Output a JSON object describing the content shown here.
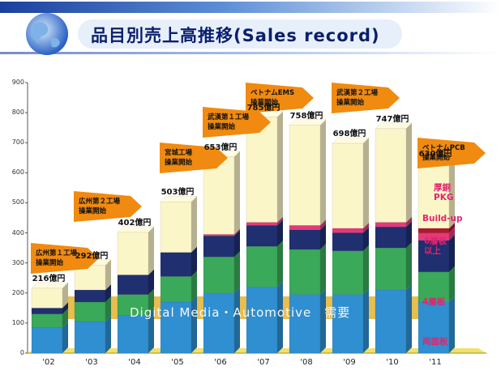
{
  "header": {
    "title": "品目別売上高推移(Sales record)"
  },
  "chart_data": {
    "type": "bar",
    "stacked": true,
    "categories": [
      "'02",
      "'03",
      "'04",
      "'05",
      "'06",
      "'07",
      "'08",
      "'09",
      "'10",
      "'11"
    ],
    "value_labels": [
      "216億円",
      "292億円",
      "402億円",
      "503億円",
      "653億円",
      "785億円",
      "758億円",
      "698億円",
      "747億円",
      "630億円"
    ],
    "totals": [
      216,
      292,
      402,
      503,
      653,
      785,
      758,
      698,
      747,
      630
    ],
    "ylim": [
      0,
      900
    ],
    "yticks": [
      0,
      100,
      200,
      300,
      400,
      500,
      600,
      700,
      800,
      900
    ],
    "series": [
      {
        "name": "両面板",
        "color": "#2f8fd0",
        "values": [
          85,
          105,
          125,
          170,
          200,
          220,
          195,
          195,
          210,
          170
        ]
      },
      {
        "name": "4層板",
        "color": "#3aa95a",
        "values": [
          45,
          65,
          70,
          85,
          120,
          135,
          150,
          145,
          140,
          100
        ]
      },
      {
        "name": "6層板以上",
        "color": "#1f2f70",
        "values": [
          20,
          40,
          65,
          80,
          70,
          70,
          65,
          60,
          70,
          105
        ]
      },
      {
        "name": "Build-up",
        "color": "#e23a7a",
        "values": [
          0,
          0,
          0,
          0,
          5,
          10,
          15,
          15,
          15,
          25
        ]
      },
      {
        "name": "厚銅PKG",
        "color": "#b1182c",
        "values": [
          0,
          0,
          0,
          0,
          0,
          0,
          0,
          0,
          0,
          15
        ]
      },
      {
        "name": "",
        "color": "#fbf6c8",
        "values": [
          66,
          82,
          142,
          168,
          258,
          350,
          333,
          283,
          312,
          215
        ]
      }
    ],
    "legend_labels": [
      "厚銅",
      "PKG",
      "Build-up",
      "6層板",
      "以上",
      "4層板",
      "両面板"
    ],
    "trend_arrow": "Digital Media・Automotive　需要",
    "callouts": [
      {
        "category": "'02",
        "lines": [
          "広州第１工場",
          "操業開始"
        ]
      },
      {
        "category": "'03",
        "lines": [
          "広州第２工場",
          "操業開始"
        ]
      },
      {
        "category": "'05",
        "lines": [
          "宮城工場",
          "操業開始"
        ]
      },
      {
        "category": "'06",
        "lines": [
          "武漢第１工場",
          "操業開始"
        ]
      },
      {
        "category": "'07",
        "lines": [
          "ベトナムEMS",
          "操業開始"
        ]
      },
      {
        "category": "'09",
        "lines": [
          "武漢第２工場",
          "操業開始"
        ]
      },
      {
        "category": "'11",
        "lines": [
          "ベトナムPCB",
          "操業開始"
        ]
      }
    ]
  },
  "colors": {
    "header_blue": "#1b3f9e",
    "arrow_orange": "#f08a10",
    "trend_arrow": "#e6b840",
    "legend_text": "#e2246e"
  }
}
